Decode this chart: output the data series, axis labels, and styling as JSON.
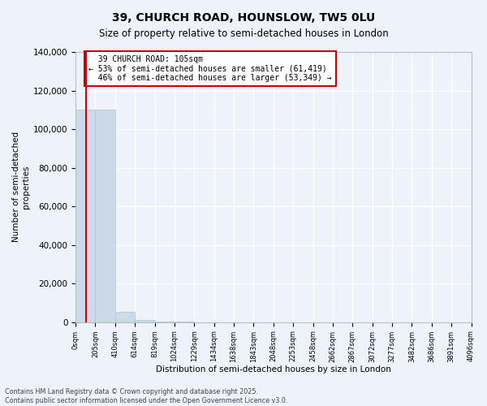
{
  "title": "39, CHURCH ROAD, HOUNSLOW, TW5 0LU",
  "subtitle": "Size of property relative to semi-detached houses in London",
  "xlabel": "Distribution of semi-detached houses by size in London",
  "ylabel": "Number of semi-detached\nproperties",
  "footer_line1": "Contains HM Land Registry data © Crown copyright and database right 2025.",
  "footer_line2": "Contains public sector information licensed under the Open Government Licence v3.0.",
  "property_size_sqm": 105,
  "property_label": "39 CHURCH ROAD: 105sqm",
  "pct_smaller": 53,
  "pct_larger": 46,
  "n_smaller": 61419,
  "n_larger": 53349,
  "bar_color": "#ccd9e8",
  "bar_edge_color": "#aec6d8",
  "line_color": "#cc0000",
  "annotation_box_color": "#cc0000",
  "background_color": "#eef2fb",
  "grid_color": "#ffffff",
  "bin_labels": [
    "0sqm",
    "205sqm",
    "410sqm",
    "614sqm",
    "819sqm",
    "1024sqm",
    "1229sqm",
    "1434sqm",
    "1638sqm",
    "1843sqm",
    "2048sqm",
    "2253sqm",
    "2458sqm",
    "2662sqm",
    "2867sqm",
    "3072sqm",
    "3277sqm",
    "3482sqm",
    "3686sqm",
    "3891sqm",
    "4096sqm"
  ],
  "bin_starts": [
    0,
    205,
    410,
    614,
    819,
    1024,
    1229,
    1434,
    1638,
    1843,
    2048,
    2253,
    2458,
    2662,
    2867,
    3072,
    3277,
    3482,
    3686,
    3891
  ],
  "bar_heights": [
    110000,
    110000,
    5500,
    1100,
    350,
    150,
    80,
    50,
    30,
    18,
    12,
    8,
    6,
    5,
    4,
    3,
    2,
    2,
    1,
    1
  ],
  "ylim": [
    0,
    140000
  ],
  "yticks": [
    0,
    20000,
    40000,
    60000,
    80000,
    100000,
    120000,
    140000
  ]
}
